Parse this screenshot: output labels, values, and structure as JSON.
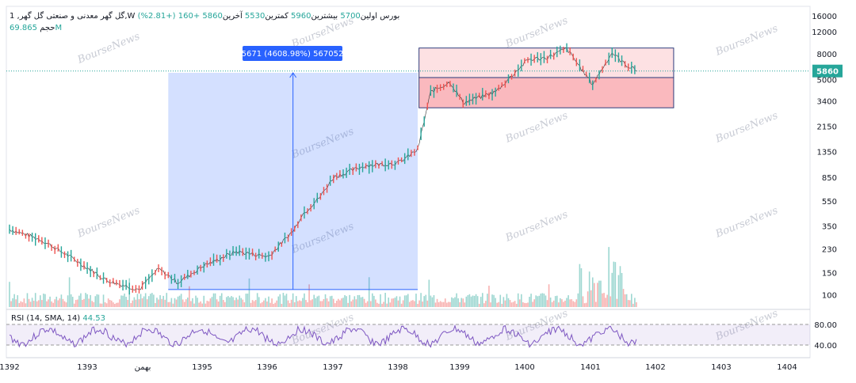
{
  "header": {
    "symbol_line": "1 ,گل گهر",
    "exchange": "معدنی و صنعتی گل گهر",
    "interval": "W",
    "market": "بورس",
    "open_label": "اولین",
    "open": "5700",
    "high_label": "بیشترین",
    "high": "5960",
    "low_label": "کمترین",
    "low": "5530",
    "close_label": "آخرین",
    "close": "5860",
    "change": "+160 (+2.81%)",
    "volume_label": "حجم",
    "volume": "69.865M"
  },
  "measure_label": "5671 (4608.98%) 567052",
  "price_badge": "5860",
  "watermark": "BourseNews",
  "colors": {
    "up": "#26a69a",
    "down": "#ef5350",
    "rsi": "#7e57c2",
    "measure": "#2962ff"
  },
  "chart_data": {
    "type": "line",
    "title": "",
    "y_scale": "log",
    "y_ticks": [
      "16000",
      "12000",
      "8000",
      "5000",
      "3400",
      "2150",
      "1350",
      "850",
      "550",
      "350",
      "230",
      "150",
      "100"
    ],
    "x_ticks": [
      "1392",
      "1393",
      "بهمن",
      "1395",
      "1396",
      "1397",
      "1398",
      "1399",
      "1400",
      "1401",
      "1402",
      "1403",
      "1404"
    ],
    "series": [
      {
        "name": "",
        "x": [
          "1392",
          "1392.5",
          "1393",
          "1393.5",
          "1394",
          "1394.3",
          "1394.6",
          "1395",
          "1395.5",
          "1396",
          "1396.4",
          "1396.5",
          "1396.8",
          "1397",
          "1397.5",
          "1398",
          "1398.3",
          "1398.5",
          "1398.8",
          "1399",
          "1399.5",
          "1400",
          "1400.3",
          "1400.6",
          "1401",
          "1401.3",
          "1401.5",
          "1401.7"
        ],
        "values": [
          330,
          270,
          190,
          130,
          110,
          160,
          125,
          170,
          220,
          200,
          330,
          420,
          600,
          850,
          1050,
          1100,
          1400,
          4000,
          4800,
          3300,
          4000,
          7200,
          7500,
          8800,
          4600,
          8200,
          6600,
          5860
        ]
      }
    ],
    "rsi": {
      "name": "RSI (14, SMA, 14)",
      "value": "44.53",
      "levels": [
        "80.00",
        "40.00"
      ]
    }
  }
}
